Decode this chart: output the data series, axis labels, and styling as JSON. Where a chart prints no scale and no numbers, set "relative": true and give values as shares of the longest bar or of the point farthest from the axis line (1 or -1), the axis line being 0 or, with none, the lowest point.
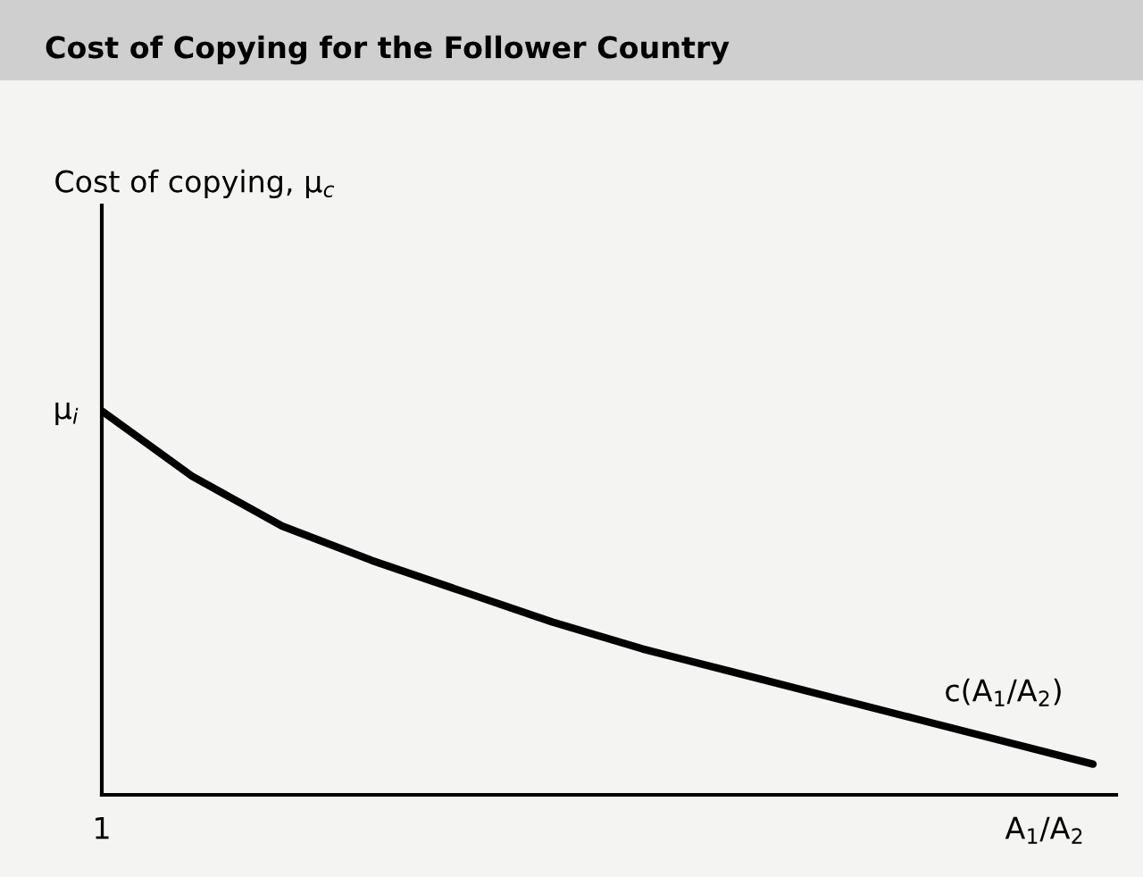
{
  "chart_data": {
    "type": "line",
    "title": "Cost of Copying for the Follower Country",
    "xlabel": "A$_{1}$/A$_{2}$",
    "relative": true,
    "categories": [
      null,
      null,
      null,
      null,
      null,
      null,
      null,
      null,
      null,
      null,
      null,
      null
    ],
    "series": [
      {
        "color": "#000000",
        "values": [
          1.0,
          0.83,
          0.7,
          0.61,
          0.53,
          0.45,
          0.38,
          0.32,
          0.26,
          0.2,
          0.14,
          0.08
        ]
      }
    ],
    "annotations": [
      "1",
      "μ$_{i}$",
      "c(A$_{1}$/A$_{2}$)",
      "Cost of copying, μ$_{c}$"
    ]
  }
}
